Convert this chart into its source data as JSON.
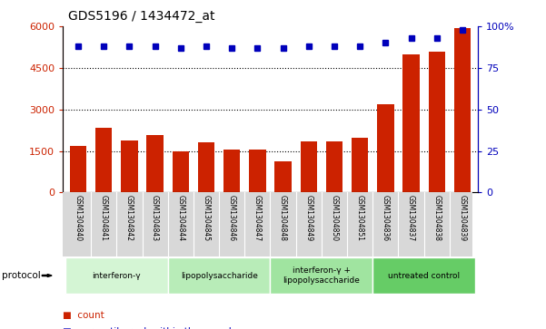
{
  "title": "GDS5196 / 1434472_at",
  "samples": [
    "GSM1304840",
    "GSM1304841",
    "GSM1304842",
    "GSM1304843",
    "GSM1304844",
    "GSM1304845",
    "GSM1304846",
    "GSM1304847",
    "GSM1304848",
    "GSM1304849",
    "GSM1304850",
    "GSM1304851",
    "GSM1304836",
    "GSM1304837",
    "GSM1304838",
    "GSM1304839"
  ],
  "counts": [
    1680,
    2350,
    1880,
    2080,
    1470,
    1800,
    1540,
    1540,
    1140,
    1840,
    1840,
    1980,
    3180,
    5000,
    5100,
    5950
  ],
  "percentiles": [
    88,
    88,
    88,
    88,
    87,
    88,
    87,
    87,
    87,
    88,
    88,
    88,
    90,
    93,
    93,
    98
  ],
  "groups": [
    {
      "label": "interferon-γ",
      "start": 0,
      "end": 4,
      "color": "#d4f5d4"
    },
    {
      "label": "lipopolysaccharide",
      "start": 4,
      "end": 8,
      "color": "#b8ecb8"
    },
    {
      "label": "interferon-γ +\nlipopolysaccharide",
      "start": 8,
      "end": 12,
      "color": "#a0e4a0"
    },
    {
      "label": "untreated control",
      "start": 12,
      "end": 16,
      "color": "#66cc66"
    }
  ],
  "bar_color": "#cc2200",
  "dot_color": "#0000bb",
  "left_ylim": [
    0,
    6000
  ],
  "left_yticks": [
    0,
    1500,
    3000,
    4500,
    6000
  ],
  "right_yticks": [
    0,
    25,
    50,
    75,
    100
  ],
  "right_ytick_labels": [
    "0",
    "25",
    "50",
    "75",
    "100%"
  ],
  "grid_vals": [
    1500,
    3000,
    4500
  ],
  "tick_area_color": "#d8d8d8"
}
